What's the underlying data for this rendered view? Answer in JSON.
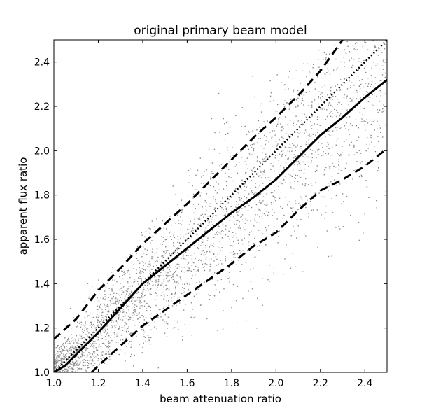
{
  "chart_data": {
    "type": "scatter",
    "title": "original primary beam model",
    "xlabel": "beam attenuation ratio",
    "ylabel": "apparent flux ratio",
    "xlim": [
      1.0,
      2.5
    ],
    "ylim": [
      1.0,
      2.5
    ],
    "xticks": [
      "1.0",
      "1.2",
      "1.4",
      "1.6",
      "1.8",
      "2.0",
      "2.2",
      "2.4"
    ],
    "yticks": [
      "1.0",
      "1.2",
      "1.4",
      "1.6",
      "1.8",
      "2.0",
      "2.2",
      "2.4"
    ],
    "grid": false,
    "scatter_color": "#8c8c8c",
    "series": [
      {
        "style": "solid",
        "x": [
          1.0,
          1.05,
          1.1,
          1.2,
          1.3,
          1.4,
          1.5,
          1.6,
          1.7,
          1.8,
          1.9,
          2.0,
          2.1,
          2.2,
          2.3,
          2.4,
          2.5
        ],
        "y": [
          1.0,
          1.03,
          1.08,
          1.18,
          1.29,
          1.4,
          1.48,
          1.56,
          1.64,
          1.72,
          1.79,
          1.87,
          1.97,
          2.07,
          2.15,
          2.24,
          2.32
        ]
      },
      {
        "style": "dashed",
        "x": [
          1.0,
          1.1,
          1.2,
          1.3,
          1.4,
          1.5,
          1.6,
          1.7,
          1.8,
          1.9,
          2.0,
          2.1,
          2.2,
          2.3
        ],
        "y": [
          1.15,
          1.24,
          1.37,
          1.47,
          1.58,
          1.67,
          1.76,
          1.86,
          1.96,
          2.06,
          2.15,
          2.25,
          2.36,
          2.5
        ]
      },
      {
        "style": "dashed",
        "x": [
          1.17,
          1.2,
          1.3,
          1.4,
          1.5,
          1.6,
          1.7,
          1.8,
          1.9,
          2.0,
          2.1,
          2.2,
          2.3,
          2.4,
          2.5
        ],
        "y": [
          1.0,
          1.03,
          1.12,
          1.21,
          1.28,
          1.35,
          1.42,
          1.49,
          1.57,
          1.63,
          1.73,
          1.82,
          1.87,
          1.93,
          2.01
        ]
      },
      {
        "style": "dotted",
        "x": [
          1.0,
          2.5
        ],
        "y": [
          1.0,
          2.5
        ]
      }
    ]
  }
}
